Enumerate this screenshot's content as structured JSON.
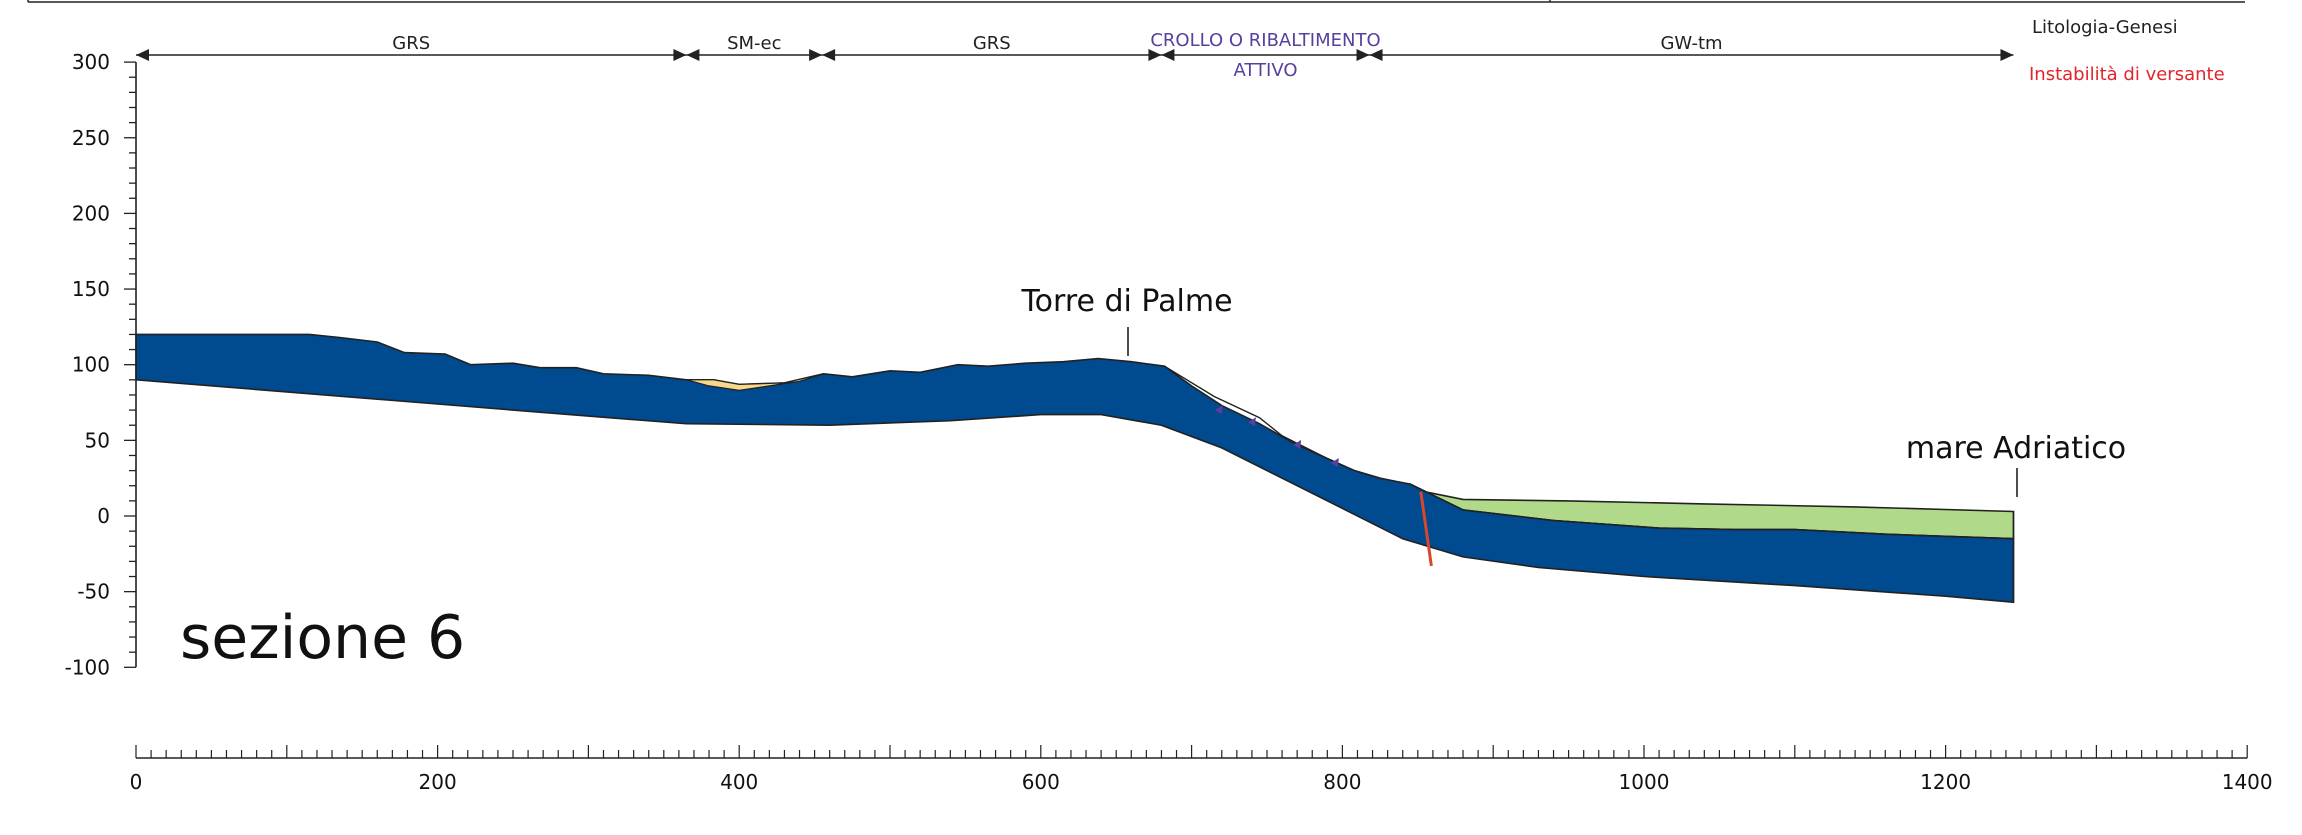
{
  "section": {
    "title": "sezione 6",
    "label_torre": "Torre di Palme",
    "label_mare": "mare Adriatico"
  },
  "legend": {
    "litologia": "Litologia-Genesi",
    "instabilita": "Instabilità di versante"
  },
  "colors": {
    "bedrock": "#004a8f",
    "gravel_silt": "#b1d98a",
    "sand_lens": "#f7d98e",
    "landslide_text": "#5b3f9e",
    "instability_text": "#e3242b",
    "fault": "#d9472b",
    "axis": "#222222"
  },
  "y_axis": {
    "min": -100,
    "max": 300,
    "ticks": [
      "300",
      "250",
      "200",
      "150",
      "100",
      "50",
      "0",
      "-50",
      "-100"
    ]
  },
  "x_axis": {
    "min": 0,
    "max": 1400,
    "ticks": [
      "0",
      "200",
      "400",
      "600",
      "800",
      "1000",
      "1200",
      "1400"
    ]
  },
  "zones": [
    {
      "label": "GRS",
      "from": 0,
      "to": 365,
      "kind": "litologia"
    },
    {
      "label": "SM-ec",
      "from": 365,
      "to": 455,
      "kind": "litologia"
    },
    {
      "label": "GRS",
      "from": 455,
      "to": 680,
      "kind": "litologia"
    },
    {
      "label_1": "CROLLO O RIBALTIMENTO",
      "label_2": "ATTIVO",
      "from": 680,
      "to": 818,
      "kind": "instabilita"
    },
    {
      "label": "GW-tm",
      "from": 818,
      "to": 1245,
      "kind": "litologia"
    }
  ],
  "profile": {
    "bedrock_top": [
      [
        0,
        120
      ],
      [
        115,
        120
      ],
      [
        135,
        118
      ],
      [
        160,
        115
      ],
      [
        178,
        108
      ],
      [
        205,
        107
      ],
      [
        222,
        100
      ],
      [
        250,
        101
      ],
      [
        268,
        98
      ],
      [
        292,
        98
      ],
      [
        310,
        94
      ],
      [
        340,
        93
      ],
      [
        365,
        90
      ],
      [
        383,
        90
      ],
      [
        400,
        87
      ],
      [
        430,
        88
      ],
      [
        456,
        94
      ],
      [
        475,
        92
      ],
      [
        500,
        96
      ],
      [
        520,
        95
      ],
      [
        545,
        100
      ],
      [
        565,
        99
      ],
      [
        590,
        101
      ],
      [
        615,
        102
      ],
      [
        638,
        104
      ],
      [
        660,
        102
      ],
      [
        682,
        99
      ],
      [
        700,
        86
      ],
      [
        720,
        73
      ],
      [
        745,
        61
      ],
      [
        768,
        48
      ],
      [
        790,
        38
      ],
      [
        808,
        30
      ],
      [
        825,
        25
      ],
      [
        845,
        21
      ]
    ],
    "bedrock_bottom": [
      [
        0,
        90
      ],
      [
        100,
        82
      ],
      [
        200,
        74
      ],
      [
        300,
        66
      ],
      [
        365,
        61
      ],
      [
        460,
        60
      ],
      [
        540,
        63
      ],
      [
        600,
        67
      ],
      [
        640,
        67
      ],
      [
        680,
        60
      ],
      [
        720,
        45
      ],
      [
        760,
        25
      ],
      [
        800,
        5
      ],
      [
        840,
        -15
      ],
      [
        880,
        -27
      ],
      [
        930,
        -34
      ],
      [
        1000,
        -40
      ],
      [
        1100,
        -46
      ],
      [
        1200,
        -53
      ],
      [
        1245,
        -57
      ]
    ],
    "gw_surface": [
      [
        845,
        18
      ],
      [
        880,
        11
      ],
      [
        950,
        10
      ],
      [
        1040,
        8
      ],
      [
        1140,
        6
      ],
      [
        1245,
        3
      ]
    ],
    "gw_base": [
      [
        845,
        21
      ],
      [
        880,
        4
      ],
      [
        940,
        -3
      ],
      [
        1010,
        -8
      ],
      [
        1060,
        -9
      ],
      [
        1100,
        -9
      ],
      [
        1160,
        -12
      ],
      [
        1245,
        -15
      ]
    ],
    "sand_lens": [
      [
        365,
        90
      ],
      [
        383,
        90
      ],
      [
        400,
        87
      ],
      [
        430,
        88
      ],
      [
        456,
        94
      ],
      [
        440,
        89
      ],
      [
        420,
        86
      ],
      [
        400,
        83
      ],
      [
        380,
        86
      ]
    ],
    "landslide_envelope": [
      [
        682,
        99
      ],
      [
        715,
        79
      ],
      [
        745,
        65
      ],
      [
        760,
        53
      ],
      [
        790,
        38
      ],
      [
        808,
        30
      ],
      [
        825,
        25
      ]
    ],
    "fault": [
      [
        852,
        16
      ],
      [
        859,
        -33
      ]
    ]
  }
}
